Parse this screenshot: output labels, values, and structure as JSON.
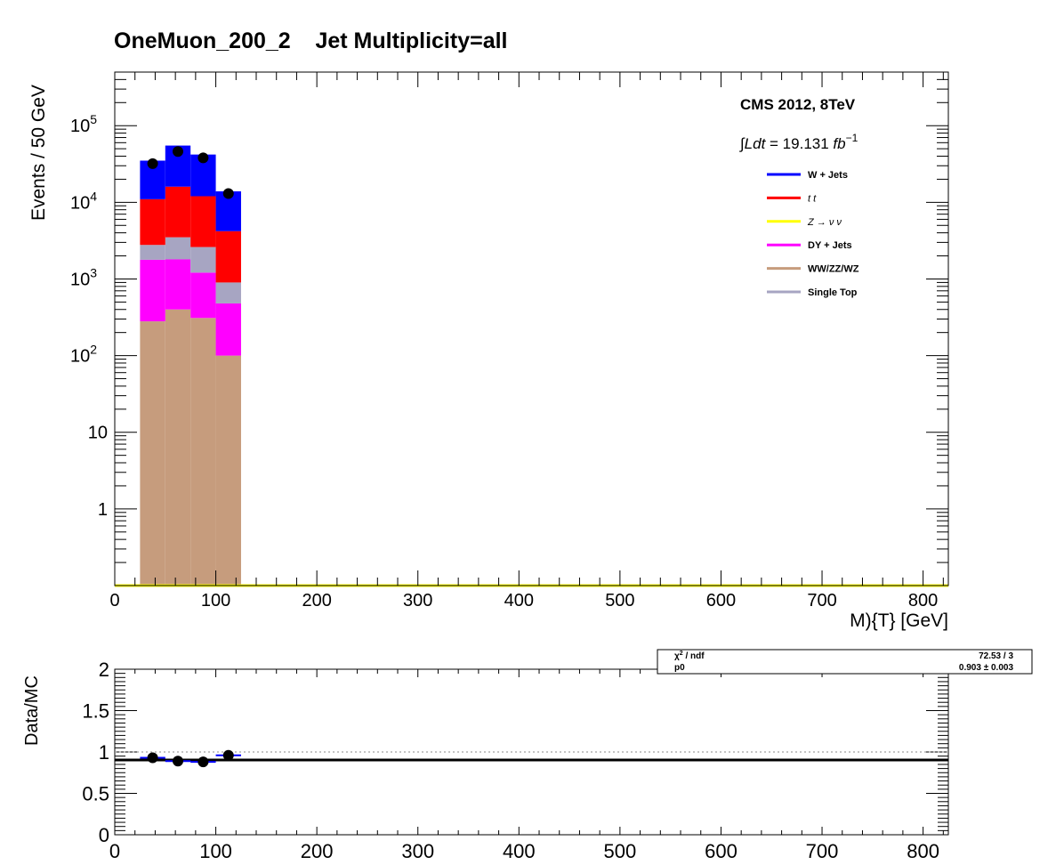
{
  "chart_data": [
    {
      "type": "bar",
      "stacked": true,
      "title": "OneMuon_200_2    Jet Multiplicity=all",
      "xlabel": "M){T} [GeV]",
      "ylabel": "Events / 50 GeV",
      "log_y": true,
      "xlim": [
        0,
        825
      ],
      "ylim": [
        0.1,
        500000
      ],
      "x_ticks": [
        "0",
        "100",
        "200",
        "300",
        "400",
        "500",
        "600",
        "700",
        "800"
      ],
      "y_ticks": [
        "1",
        "10",
        "10^2",
        "10^3",
        "10^4",
        "10^5"
      ],
      "bin_edges": [
        25,
        50,
        75,
        100,
        125
      ],
      "annotations": [
        "CMS 2012, 8TeV",
        "∫Ldt = 19.131 fb^-1"
      ],
      "legend_position": "top-right",
      "series": [
        {
          "name": "WW/ZZ/WZ",
          "color": "#c69c7d",
          "values": [
            280,
            400,
            310,
            100
          ]
        },
        {
          "name": "DY + Jets",
          "color": "#ff00ff",
          "values": [
            1500,
            1400,
            900,
            380
          ]
        },
        {
          "name": "Single Top",
          "color": "#a7a5c2",
          "values": [
            1000,
            1700,
            1400,
            420
          ]
        },
        {
          "name": "t t",
          "color": "#ff0000",
          "values": [
            8200,
            12500,
            9400,
            3300
          ]
        },
        {
          "name": "Z → ν ν",
          "color": "#ffff00",
          "values": [
            0,
            0,
            0,
            0
          ]
        },
        {
          "name": "W + Jets",
          "color": "#0000ff",
          "values": [
            24000,
            39000,
            30000,
            9700
          ]
        }
      ],
      "data_points": {
        "x": [
          37.5,
          62.5,
          87.5,
          112.5
        ],
        "y": [
          32000,
          46000,
          38000,
          13000
        ]
      }
    },
    {
      "type": "scatter",
      "xlabel": "",
      "ylabel": "Data/MC",
      "xlim": [
        0,
        825
      ],
      "ylim": [
        0,
        2
      ],
      "x_ticks": [
        "0",
        "100",
        "200",
        "300",
        "400",
        "500",
        "600",
        "700",
        "800"
      ],
      "y_ticks": [
        "0",
        "0.5",
        "1",
        "1.5",
        "2"
      ],
      "x": [
        37.5,
        62.5,
        87.5,
        112.5
      ],
      "y": [
        0.93,
        0.89,
        0.88,
        0.96
      ],
      "fit_value": 0.903,
      "fit_box": {
        "chi2_label": "χ² / ndf",
        "chi2_value": "72.53 / 3",
        "p0_label": "p0",
        "p0_value": "0.903 ± 0.003"
      }
    }
  ]
}
